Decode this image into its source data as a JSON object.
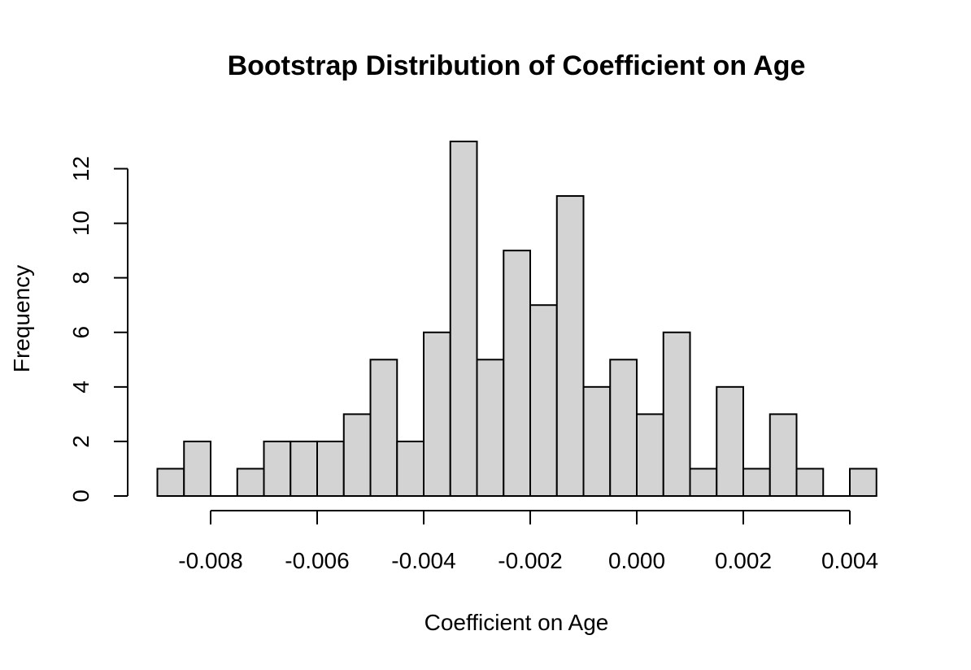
{
  "chart_data": {
    "type": "bar",
    "title": "Bootstrap Distribution of Coefficient on Age",
    "xlabel": "Coefficient on Age",
    "ylabel": "Frequency",
    "bin_width": 0.0005,
    "bin_start": -0.009,
    "values": [
      1,
      2,
      0,
      1,
      2,
      2,
      2,
      3,
      5,
      2,
      6,
      13,
      5,
      9,
      7,
      11,
      4,
      5,
      3,
      6,
      1,
      4,
      1,
      3,
      1,
      0,
      1
    ],
    "xlim": [
      -0.009,
      0.0045
    ],
    "ylim": [
      0,
      13
    ],
    "x_ticks": [
      -0.008,
      -0.006,
      -0.004,
      -0.002,
      0.0,
      0.002,
      0.004
    ],
    "x_tick_labels": [
      "-0.008",
      "-0.006",
      "-0.004",
      "-0.002",
      "0.000",
      "0.002",
      "0.004"
    ],
    "y_ticks": [
      0,
      2,
      4,
      6,
      8,
      10,
      12
    ],
    "y_tick_labels": [
      "0",
      "2",
      "4",
      "6",
      "8",
      "10",
      "12"
    ],
    "bar_fill": "#d3d3d3",
    "bar_stroke": "#000000",
    "grid": false
  }
}
